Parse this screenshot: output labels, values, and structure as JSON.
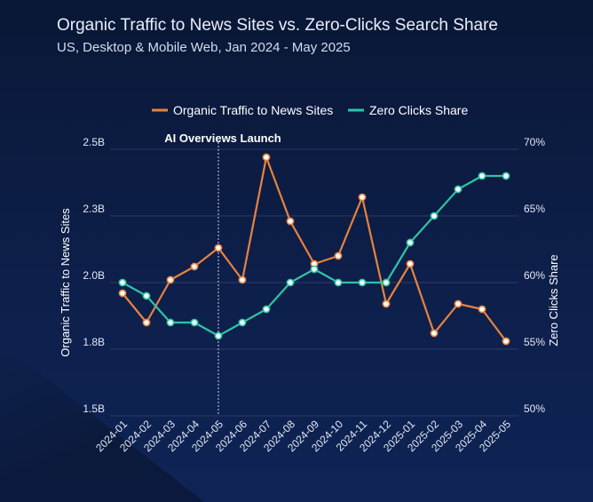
{
  "chart_data": {
    "type": "line",
    "title": "Organic Traffic to News Sites vs. Zero-Clicks Search Share",
    "subtitle": "US, Desktop & Mobile Web, Jan 2024 - May 2025",
    "categories": [
      "2024-01",
      "2024-02",
      "2024-03",
      "2024-04",
      "2024-05",
      "2024-06",
      "2024-07",
      "2024-08",
      "2024-09",
      "2024-10",
      "2024-11",
      "2024-12",
      "2025-01",
      "2025-02",
      "2025-03",
      "2025-04",
      "2025-05"
    ],
    "series": [
      {
        "name": "Organic Traffic to News Sites",
        "axis": "left",
        "color": "#e8823e",
        "values": [
          1.96,
          1.85,
          2.01,
          2.06,
          2.13,
          2.01,
          2.47,
          2.23,
          2.07,
          2.1,
          2.32,
          1.92,
          2.07,
          1.81,
          1.92,
          1.9,
          1.78
        ]
      },
      {
        "name": "Zero Clicks Share",
        "axis": "right",
        "color": "#2ec4a4",
        "values": [
          60,
          59,
          57,
          57,
          56,
          57,
          58,
          60,
          61,
          60,
          60,
          60,
          63,
          65,
          67,
          68,
          68
        ]
      }
    ],
    "y_left": {
      "label": "Organic Traffic to News Sites",
      "ticks": [
        "2.5B",
        "2.3B",
        "2.0B",
        "1.8B",
        "1.5B"
      ],
      "min": 1.5,
      "max": 2.5
    },
    "y_right": {
      "label": "Zero Clicks Share",
      "ticks": [
        "70%",
        "65%",
        "60%",
        "55%",
        "50%"
      ],
      "min": 50,
      "max": 70
    },
    "annotation": {
      "label": "AI Overviews Launch",
      "at": "2024-05"
    },
    "legend": "top-center",
    "grid": true
  }
}
